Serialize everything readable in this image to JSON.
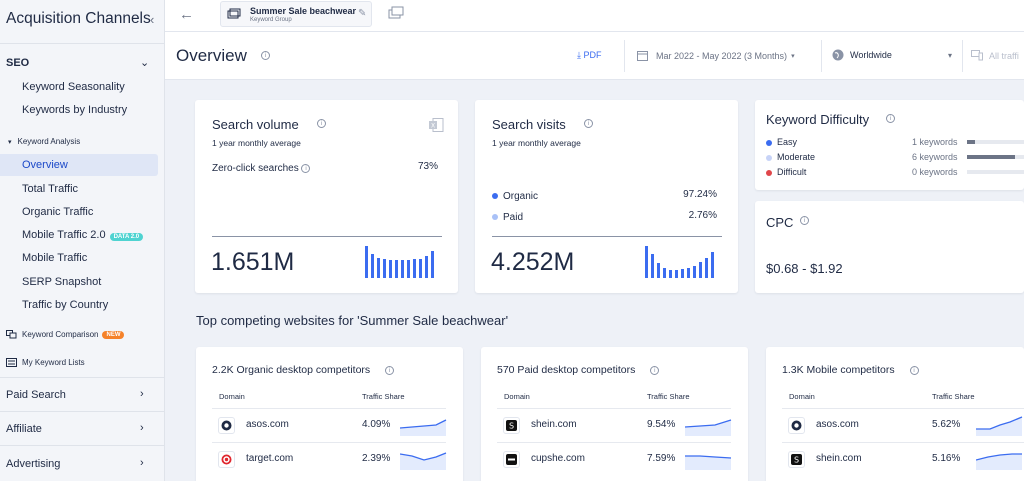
{
  "sidebar": {
    "title": "Acquisition Channels",
    "seo_label": "SEO",
    "items_top": [
      "Keyword Seasonality",
      "Keywords by Industry"
    ],
    "keyword_analysis_label": "Keyword Analysis",
    "analysis_items": [
      "Overview",
      "Total Traffic",
      "Organic Traffic",
      "Mobile Traffic 2.0",
      "Mobile Traffic",
      "SERP Snapshot",
      "Traffic by Country"
    ],
    "data_badge": "DATA 2.0",
    "keyword_comparison_label": "Keyword Comparison",
    "new_badge": "NEW",
    "my_keyword_lists_label": "My Keyword Lists",
    "groups": [
      "Paid Search",
      "Affiliate",
      "Advertising"
    ]
  },
  "topbar": {
    "tab_title": "Summer Sale beachwear",
    "tab_subtitle": "Keyword Group"
  },
  "header": {
    "title": "Overview",
    "pdf_label": "PDF",
    "date_range": "Mar 2022 - May 2022 (3 Months)",
    "geo": "Worldwide",
    "traffic": "All traffi"
  },
  "search_volume": {
    "title": "Search volume",
    "subtitle": "1 year monthly average",
    "zero_click_label": "Zero-click searches",
    "zero_click_value": "73%",
    "value": "1.651M",
    "bars": [
      0.93,
      0.72,
      0.6,
      0.56,
      0.52,
      0.52,
      0.52,
      0.52,
      0.56,
      0.56,
      0.66,
      0.8
    ]
  },
  "search_visits": {
    "title": "Search visits",
    "subtitle": "1 year monthly average",
    "organic_label": "Organic",
    "organic_value": "97.24%",
    "paid_label": "Paid",
    "paid_value": "2.76%",
    "value": "4.252M",
    "bars": [
      0.93,
      0.72,
      0.45,
      0.3,
      0.23,
      0.23,
      0.26,
      0.3,
      0.36,
      0.48,
      0.6,
      0.76
    ]
  },
  "keyword_difficulty": {
    "title": "Keyword Difficulty",
    "rows": [
      {
        "label": "Easy",
        "count": "1 keywords",
        "fraction": 0.125,
        "color": "#3b6cf0"
      },
      {
        "label": "Moderate",
        "count": "6 keywords",
        "fraction": 0.75,
        "color": "#c7d3f7"
      },
      {
        "label": "Difficult",
        "count": "0 keywords",
        "fraction": 0,
        "color": "#e0464a"
      }
    ]
  },
  "cpc": {
    "title": "CPC",
    "value": "$0.68 - $1.92"
  },
  "competitors": {
    "section_title": "Top competing websites for 'Summer Sale beachwear'",
    "domain_header": "Domain",
    "share_header": "Traffic Share",
    "cards": [
      {
        "title": "2.2K Organic desktop competitors",
        "rows": [
          {
            "domain": "asos.com",
            "share": "4.09%",
            "icon": "asos-icon"
          },
          {
            "domain": "target.com",
            "share": "2.39%",
            "icon": "target-icon"
          }
        ]
      },
      {
        "title": "570 Paid desktop competitors",
        "rows": [
          {
            "domain": "shein.com",
            "share": "9.54%",
            "icon": "shein-icon"
          },
          {
            "domain": "cupshe.com",
            "share": "7.59%",
            "icon": "cupshe-icon"
          }
        ]
      },
      {
        "title": "1.3K Mobile competitors",
        "rows": [
          {
            "domain": "asos.com",
            "share": "5.62%",
            "icon": "asos-icon"
          },
          {
            "domain": "shein.com",
            "share": "5.16%",
            "icon": "shein-icon"
          }
        ]
      }
    ]
  }
}
